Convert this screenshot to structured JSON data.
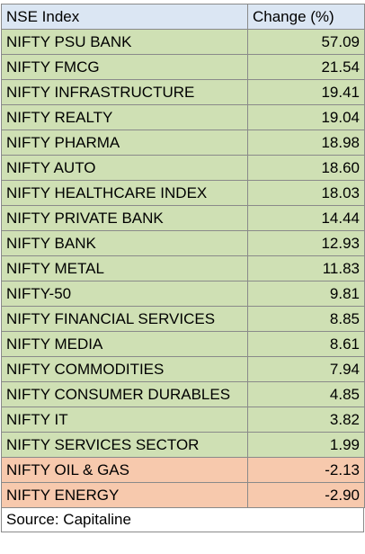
{
  "table": {
    "headers": [
      "NSE Index",
      "Change (%)"
    ],
    "rows": [
      {
        "name": "NIFTY PSU BANK",
        "change": "57.09",
        "sign": "pos"
      },
      {
        "name": "NIFTY FMCG",
        "change": "21.54",
        "sign": "pos"
      },
      {
        "name": "NIFTY INFRASTRUCTURE",
        "change": "19.41",
        "sign": "pos"
      },
      {
        "name": "NIFTY REALTY",
        "change": "19.04",
        "sign": "pos"
      },
      {
        "name": "NIFTY PHARMA",
        "change": "18.98",
        "sign": "pos"
      },
      {
        "name": "NIFTY AUTO",
        "change": "18.60",
        "sign": "pos"
      },
      {
        "name": "NIFTY HEALTHCARE INDEX",
        "change": "18.03",
        "sign": "pos"
      },
      {
        "name": "NIFTY PRIVATE BANK",
        "change": "14.44",
        "sign": "pos"
      },
      {
        "name": "NIFTY BANK",
        "change": "12.93",
        "sign": "pos"
      },
      {
        "name": "NIFTY METAL",
        "change": "11.83",
        "sign": "pos"
      },
      {
        "name": "NIFTY-50",
        "change": "9.81",
        "sign": "pos"
      },
      {
        "name": "NIFTY FINANCIAL SERVICES",
        "change": "8.85",
        "sign": "pos"
      },
      {
        "name": "NIFTY MEDIA",
        "change": "8.61",
        "sign": "pos"
      },
      {
        "name": "NIFTY COMMODITIES",
        "change": "7.94",
        "sign": "pos"
      },
      {
        "name": "NIFTY CONSUMER DURABLES",
        "change": "4.85",
        "sign": "pos"
      },
      {
        "name": "NIFTY IT",
        "change": "3.82",
        "sign": "pos"
      },
      {
        "name": "NIFTY SERVICES SECTOR",
        "change": "1.99",
        "sign": "pos"
      },
      {
        "name": "NIFTY OIL & GAS",
        "change": "-2.13",
        "sign": "neg"
      },
      {
        "name": "NIFTY ENERGY",
        "change": "-2.90",
        "sign": "neg"
      }
    ]
  },
  "source": "Source: Capitaline",
  "colors": {
    "header_bg": "#dbe6f3",
    "positive_bg": "#cfe0b4",
    "negative_bg": "#f7c9ad",
    "border": "#8a8a8a"
  }
}
